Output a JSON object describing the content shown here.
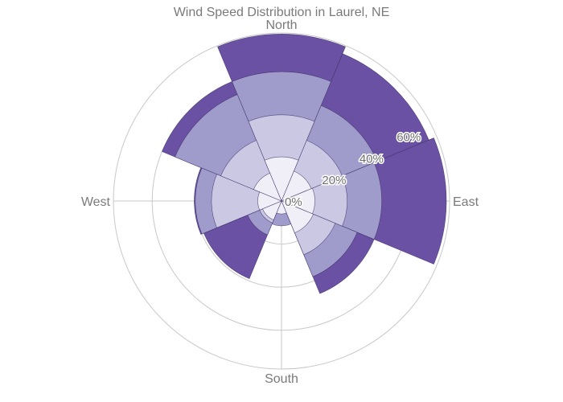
{
  "chart_data": {
    "type": "barpolar",
    "title": "Wind Speed Distribution in Laurel, NE",
    "directions": [
      "N",
      "NE",
      "E",
      "SE",
      "S",
      "SW",
      "W",
      "NW"
    ],
    "direction_labels": [
      {
        "angle": 0,
        "label": "North"
      },
      {
        "angle": 90,
        "label": "East"
      },
      {
        "angle": 180,
        "label": "South"
      },
      {
        "angle": 270,
        "label": "West"
      }
    ],
    "radial_ticks": [
      {
        "value": 0,
        "label": "0%"
      },
      {
        "value": 20,
        "label": "20%"
      },
      {
        "value": 40,
        "label": "40%"
      },
      {
        "value": 60,
        "label": "60%"
      }
    ],
    "radial_range": [
      0,
      78
    ],
    "series": [
      {
        "values": [
          20.5,
          15,
          15.5,
          16,
          6,
          9.5,
          11,
          14
        ],
        "color": "#f0eef6"
      },
      {
        "values": [
          40,
          30.5,
          30.5,
          27,
          0,
          11,
          32.5,
          30.5
        ],
        "color": "#cbc8e3"
      },
      {
        "values": [
          60,
          48,
          46.5,
          38,
          11.5,
          17,
          40,
          53.5
        ],
        "color": "#9f9ccb"
      },
      {
        "values": [
          77.5,
          74,
          76.5,
          46.5,
          0,
          39,
          40.5,
          60
        ],
        "color": "#6a51a3"
      }
    ]
  }
}
